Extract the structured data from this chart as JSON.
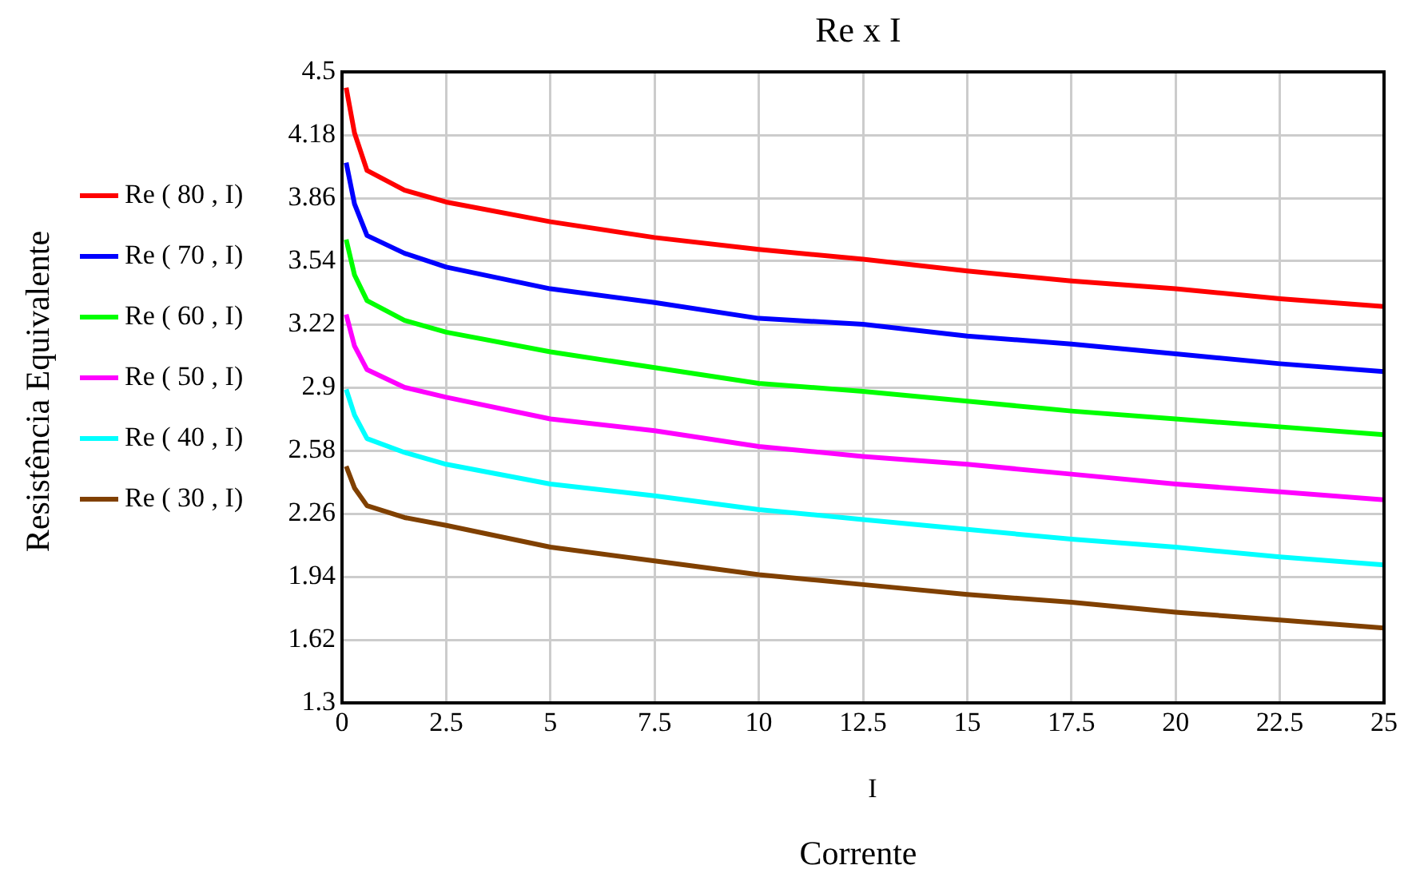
{
  "chart_data": {
    "type": "line",
    "title": "Re x I",
    "xlabel": "I",
    "annotations": [
      "Corrente",
      "Resistência Equivalente"
    ],
    "x": [
      0.1,
      0.3,
      0.6,
      1.5,
      2.5,
      5,
      7.5,
      10,
      12.5,
      15,
      17.5,
      20,
      22.5,
      25
    ],
    "series": [
      {
        "name": "Re  ( 80 , I)",
        "color": "#ff0000",
        "values": [
          4.42,
          4.19,
          4.0,
          3.9,
          3.84,
          3.74,
          3.66,
          3.6,
          3.55,
          3.49,
          3.44,
          3.4,
          3.35,
          3.31
        ]
      },
      {
        "name": "Re  ( 70 , I)",
        "color": "#0000ff",
        "values": [
          4.04,
          3.83,
          3.67,
          3.58,
          3.51,
          3.4,
          3.33,
          3.25,
          3.22,
          3.16,
          3.12,
          3.07,
          3.02,
          2.98
        ]
      },
      {
        "name": "Re  ( 60 , I)",
        "color": "#00ff00",
        "values": [
          3.65,
          3.47,
          3.34,
          3.24,
          3.18,
          3.08,
          3.0,
          2.92,
          2.88,
          2.83,
          2.78,
          2.74,
          2.7,
          2.66
        ]
      },
      {
        "name": "Re  ( 50 , I)",
        "color": "#ff00ff",
        "values": [
          3.27,
          3.11,
          2.99,
          2.9,
          2.85,
          2.74,
          2.68,
          2.6,
          2.55,
          2.51,
          2.46,
          2.41,
          2.37,
          2.33
        ]
      },
      {
        "name": "Re  ( 40 , I)",
        "color": "#00ffff",
        "values": [
          2.89,
          2.76,
          2.64,
          2.57,
          2.51,
          2.41,
          2.35,
          2.28,
          2.23,
          2.18,
          2.13,
          2.09,
          2.04,
          2.0
        ]
      },
      {
        "name": "Re  ( 30 , I)",
        "color": "#804000",
        "values": [
          2.5,
          2.39,
          2.3,
          2.24,
          2.2,
          2.09,
          2.02,
          1.95,
          1.9,
          1.85,
          1.81,
          1.76,
          1.72,
          1.68
        ]
      }
    ],
    "xlim": [
      0,
      25
    ],
    "xticks": [
      0,
      2.5,
      5,
      7.5,
      10,
      12.5,
      15,
      17.5,
      20,
      22.5,
      25
    ],
    "ylim": [
      1.3,
      4.5
    ],
    "yticks": [
      1.3,
      1.62,
      1.94,
      2.26,
      2.58,
      2.9,
      3.22,
      3.54,
      3.86,
      4.18,
      4.5
    ],
    "grid": true,
    "legend": "left",
    "marker": "none",
    "line_style": "solid"
  }
}
